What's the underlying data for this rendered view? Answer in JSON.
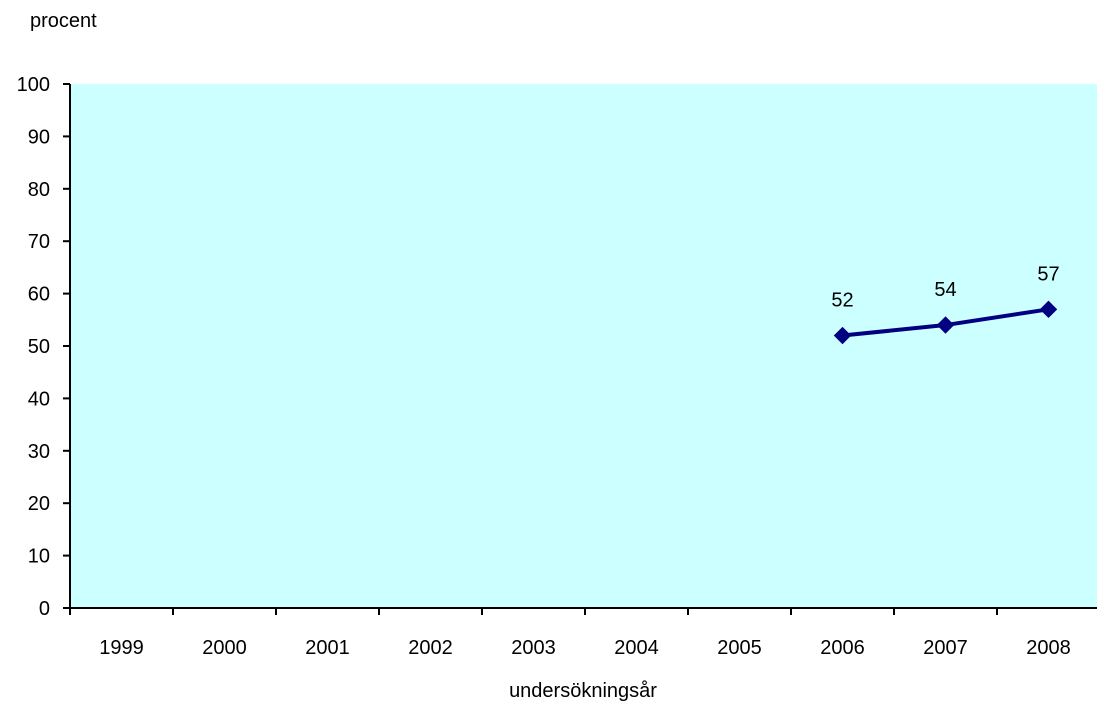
{
  "chart_data": {
    "type": "line",
    "ylabel": "procent",
    "xlabel": "undersökningsår",
    "ylim": [
      0,
      100
    ],
    "yticks": [
      0,
      10,
      20,
      30,
      40,
      50,
      60,
      70,
      80,
      90,
      100
    ],
    "categories": [
      "1999",
      "2000",
      "2001",
      "2002",
      "2003",
      "2004",
      "2005",
      "2006",
      "2007",
      "2008"
    ],
    "series": [
      {
        "values": [
          null,
          null,
          null,
          null,
          null,
          null,
          null,
          52,
          54,
          57
        ],
        "labels": [
          "",
          "",
          "",
          "",
          "",
          "",
          "",
          "52",
          "54",
          "57"
        ],
        "color": "#000080",
        "marker": "diamond"
      }
    ],
    "plot_background": "#ccffff",
    "grid": false,
    "legend": "none"
  }
}
